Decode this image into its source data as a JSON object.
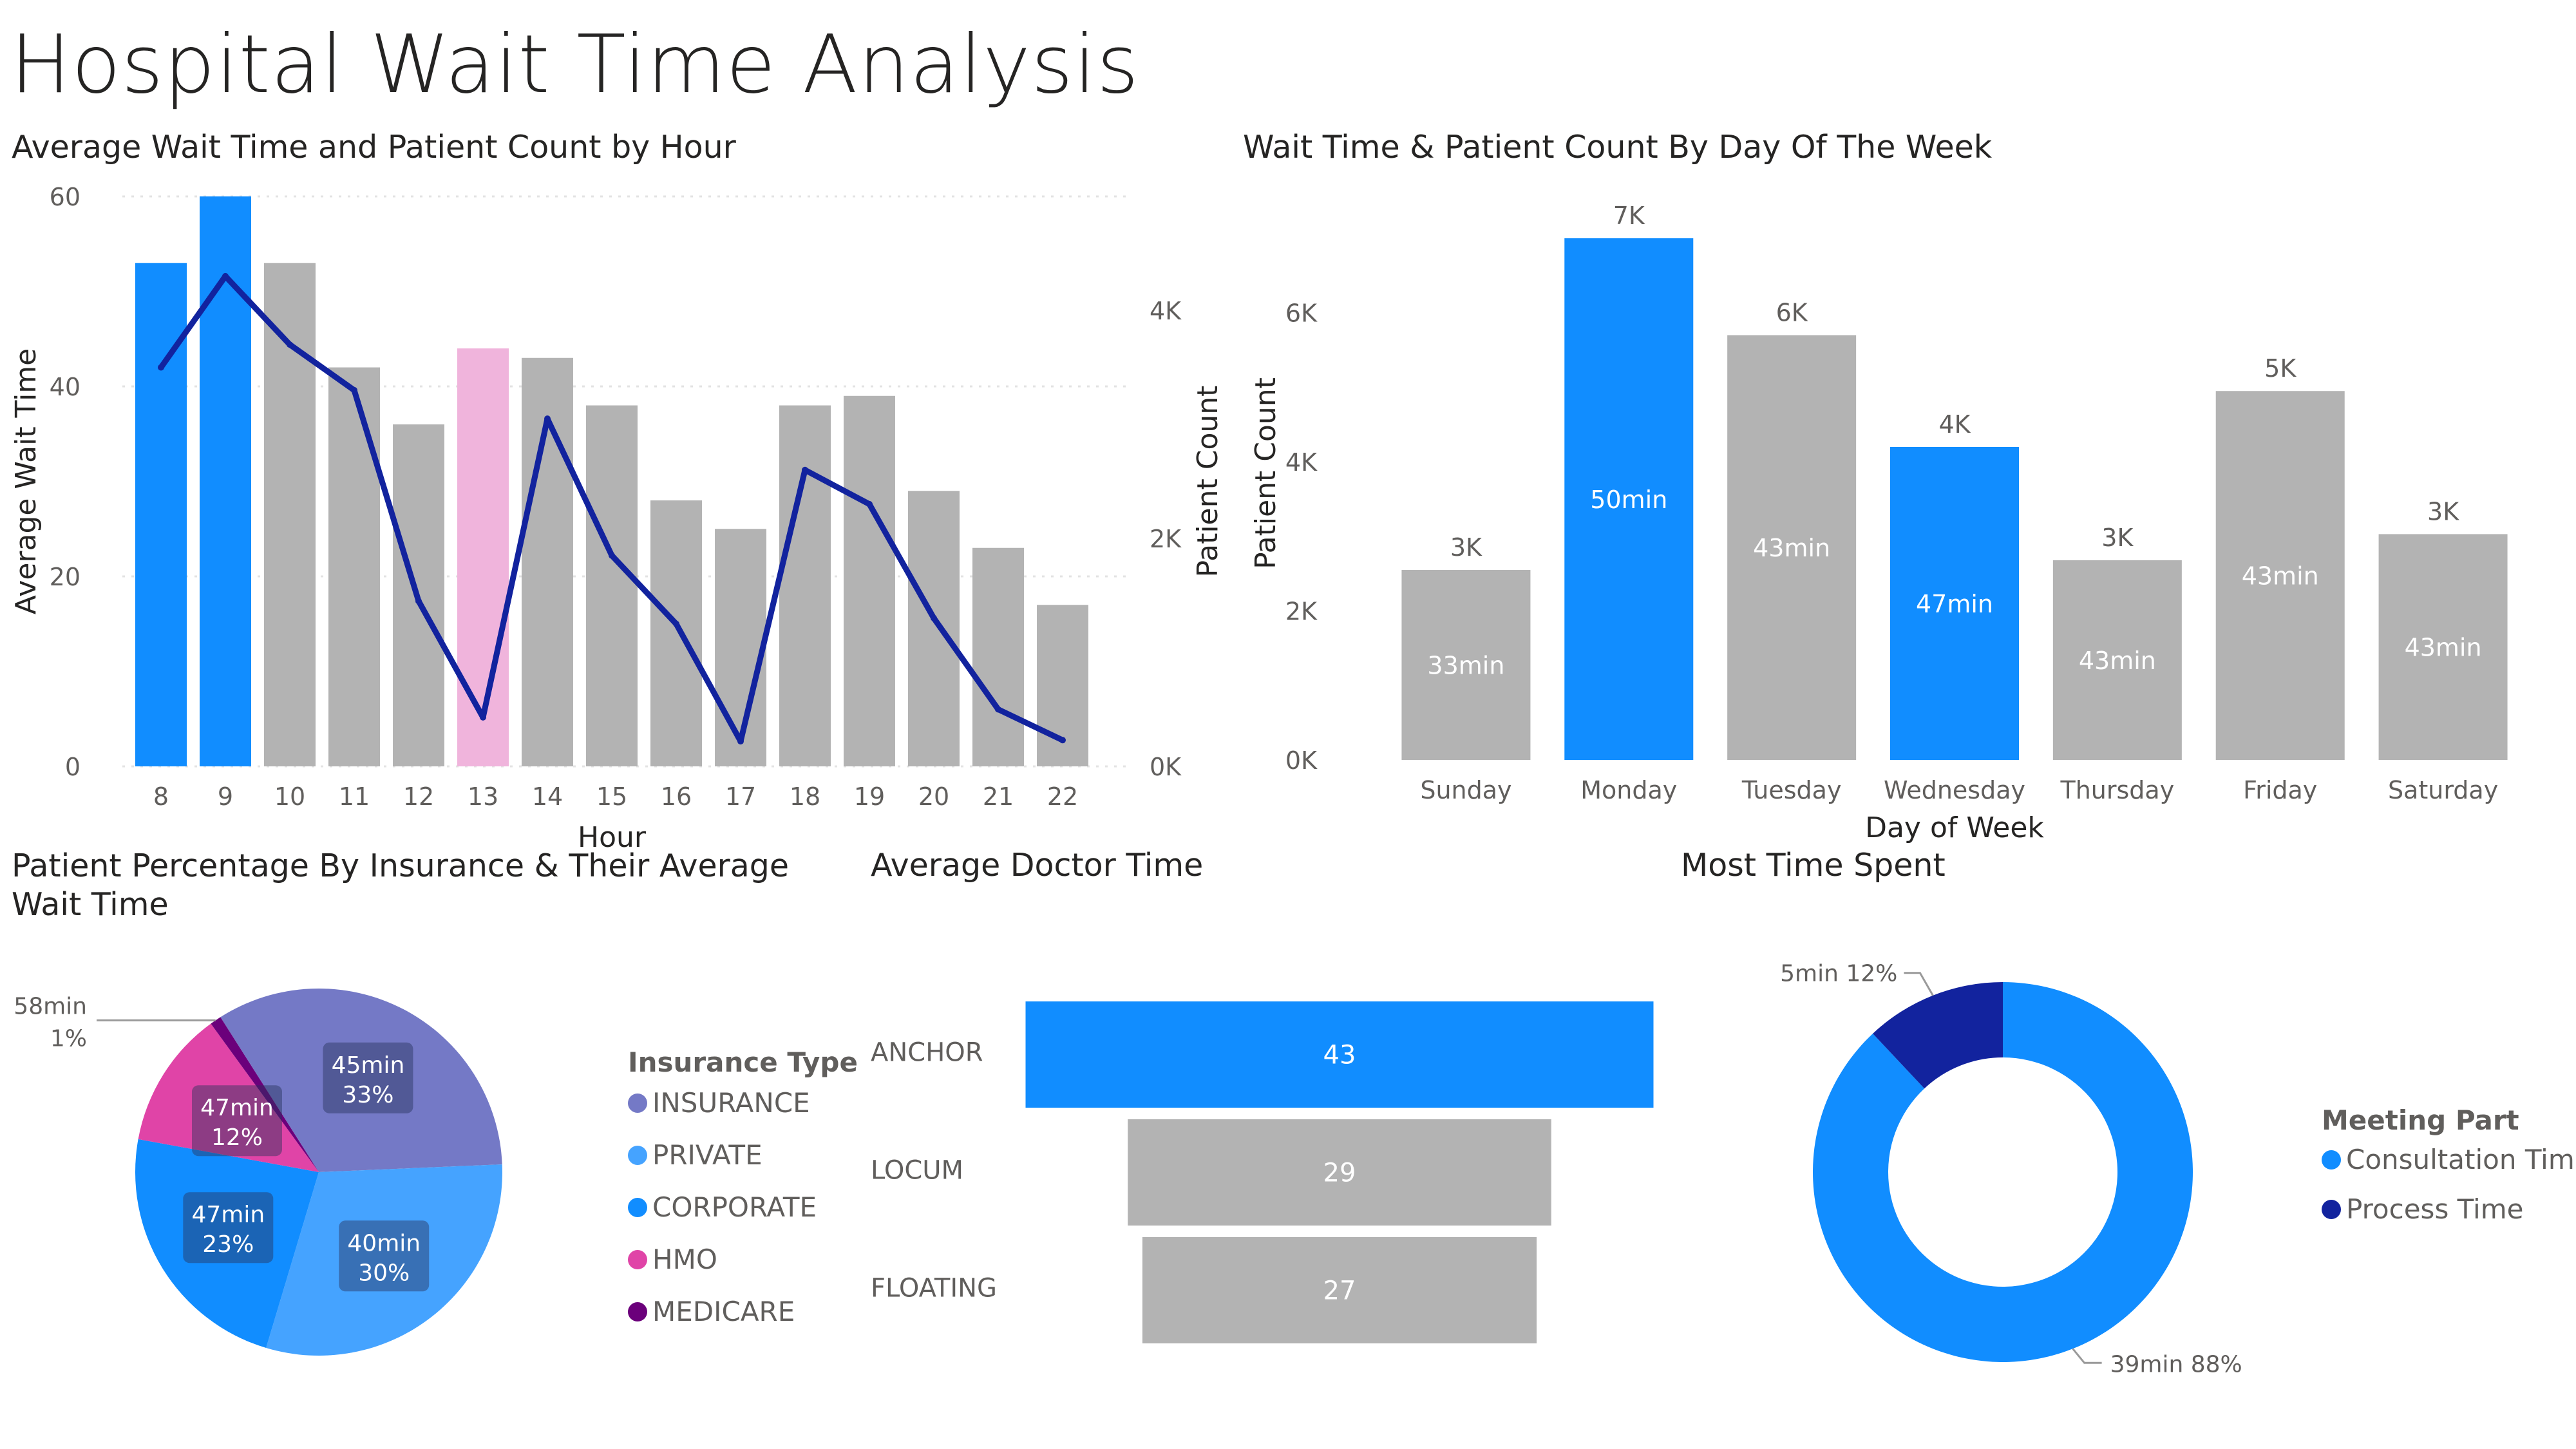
{
  "page_title": "Hospital Wait Time Analysis",
  "visuals": {
    "hourly": {
      "title": "Average Wait Time and Patient Count by Hour"
    },
    "weekly": {
      "title": "Wait Time & Patient Count By Day Of The Week"
    },
    "insurance": {
      "title": "Patient Percentage By Insurance & Their Average Wait Time"
    },
    "doctor": {
      "title": "Average Doctor Time"
    },
    "meeting": {
      "title": "Most Time Spent"
    }
  },
  "colors": {
    "blue": "#118dff",
    "gray": "#b3b3b3",
    "pink": "#f0b4dc",
    "navy": "#12239e",
    "insurance": "#7479c6",
    "private": "#45a3ff",
    "corporate": "#118dff",
    "hmo": "#e044a7",
    "medicare": "#6b007b"
  },
  "chart_data": [
    {
      "type": "bar",
      "subtype": "combo-bar-line",
      "title": "Average Wait Time and Patient Count by Hour",
      "xlabel": "Hour",
      "ylabel": "Average Wait Time",
      "y2label": "Patient Count",
      "categories": [
        "8",
        "9",
        "10",
        "11",
        "12",
        "13",
        "14",
        "15",
        "16",
        "17",
        "18",
        "19",
        "20",
        "21",
        "22"
      ],
      "series": [
        {
          "name": "Average Wait Time",
          "kind": "bar",
          "values": [
            53,
            60,
            53,
            42,
            36,
            44,
            43,
            38,
            28,
            25,
            38,
            39,
            29,
            23,
            17
          ],
          "bar_colors": [
            "blue",
            "blue",
            "gray",
            "gray",
            "gray",
            "pink",
            "gray",
            "gray",
            "gray",
            "gray",
            "gray",
            "gray",
            "gray",
            "gray",
            "gray"
          ]
        },
        {
          "name": "Patient Count",
          "kind": "line",
          "axis": "secondary",
          "values": [
            3500,
            4300,
            3700,
            3300,
            1450,
            430,
            3050,
            1850,
            1250,
            220,
            2600,
            2300,
            1300,
            500,
            230
          ]
        }
      ],
      "ylim": [
        0,
        60
      ],
      "yticks": [
        "0",
        "20",
        "40",
        "60"
      ],
      "y2lim": [
        0,
        5000
      ],
      "y2ticks": [
        "0K",
        "2K",
        "4K"
      ],
      "grid": true
    },
    {
      "type": "bar",
      "title": "Wait Time & Patient Count By Day Of The Week",
      "xlabel": "Day of Week",
      "ylabel": "Patient Count",
      "categories": [
        "Sunday",
        "Monday",
        "Tuesday",
        "Wednesday",
        "Thursday",
        "Friday",
        "Saturday"
      ],
      "values": [
        2550,
        7000,
        5700,
        4200,
        2680,
        4950,
        3030
      ],
      "top_labels": [
        "3K",
        "7K",
        "6K",
        "4K",
        "3K",
        "5K",
        "3K"
      ],
      "inner_labels": [
        "33min",
        "50min",
        "43min",
        "47min",
        "43min",
        "43min",
        "43min"
      ],
      "bar_colors": [
        "gray",
        "blue",
        "gray",
        "blue",
        "gray",
        "gray",
        "gray"
      ],
      "ylim": [
        0,
        7000
      ],
      "yticks": [
        "0K",
        "2K",
        "4K",
        "6K"
      ]
    },
    {
      "type": "pie",
      "title": "Patient Percentage By Insurance & Their Average Wait Time",
      "legend_title": "Insurance Type",
      "legend_position": "right",
      "slices": [
        {
          "name": "INSURANCE",
          "percent": 33,
          "label": "45min",
          "pct_label": "33%"
        },
        {
          "name": "PRIVATE",
          "percent": 30,
          "label": "40min",
          "pct_label": "30%"
        },
        {
          "name": "CORPORATE",
          "percent": 23,
          "label": "47min",
          "pct_label": "23%"
        },
        {
          "name": "HMO",
          "percent": 12,
          "label": "47min",
          "pct_label": "12%"
        },
        {
          "name": "MEDICARE",
          "percent": 1,
          "label": "58min",
          "pct_label": "1%"
        }
      ]
    },
    {
      "type": "bar",
      "subtype": "funnel",
      "title": "Average Doctor Time",
      "categories": [
        "ANCHOR",
        "LOCUM",
        "FLOATING"
      ],
      "values": [
        43,
        29,
        27
      ],
      "bar_colors": [
        "blue",
        "gray",
        "gray"
      ]
    },
    {
      "type": "pie",
      "subtype": "donut",
      "title": "Most Time Spent",
      "legend_title": "Meeting Part",
      "legend_position": "right",
      "slices": [
        {
          "name": "Consultation Time",
          "percent": 88,
          "label": "39min 88%"
        },
        {
          "name": "Process Time",
          "percent": 12,
          "label": "5min 12%"
        }
      ]
    }
  ]
}
